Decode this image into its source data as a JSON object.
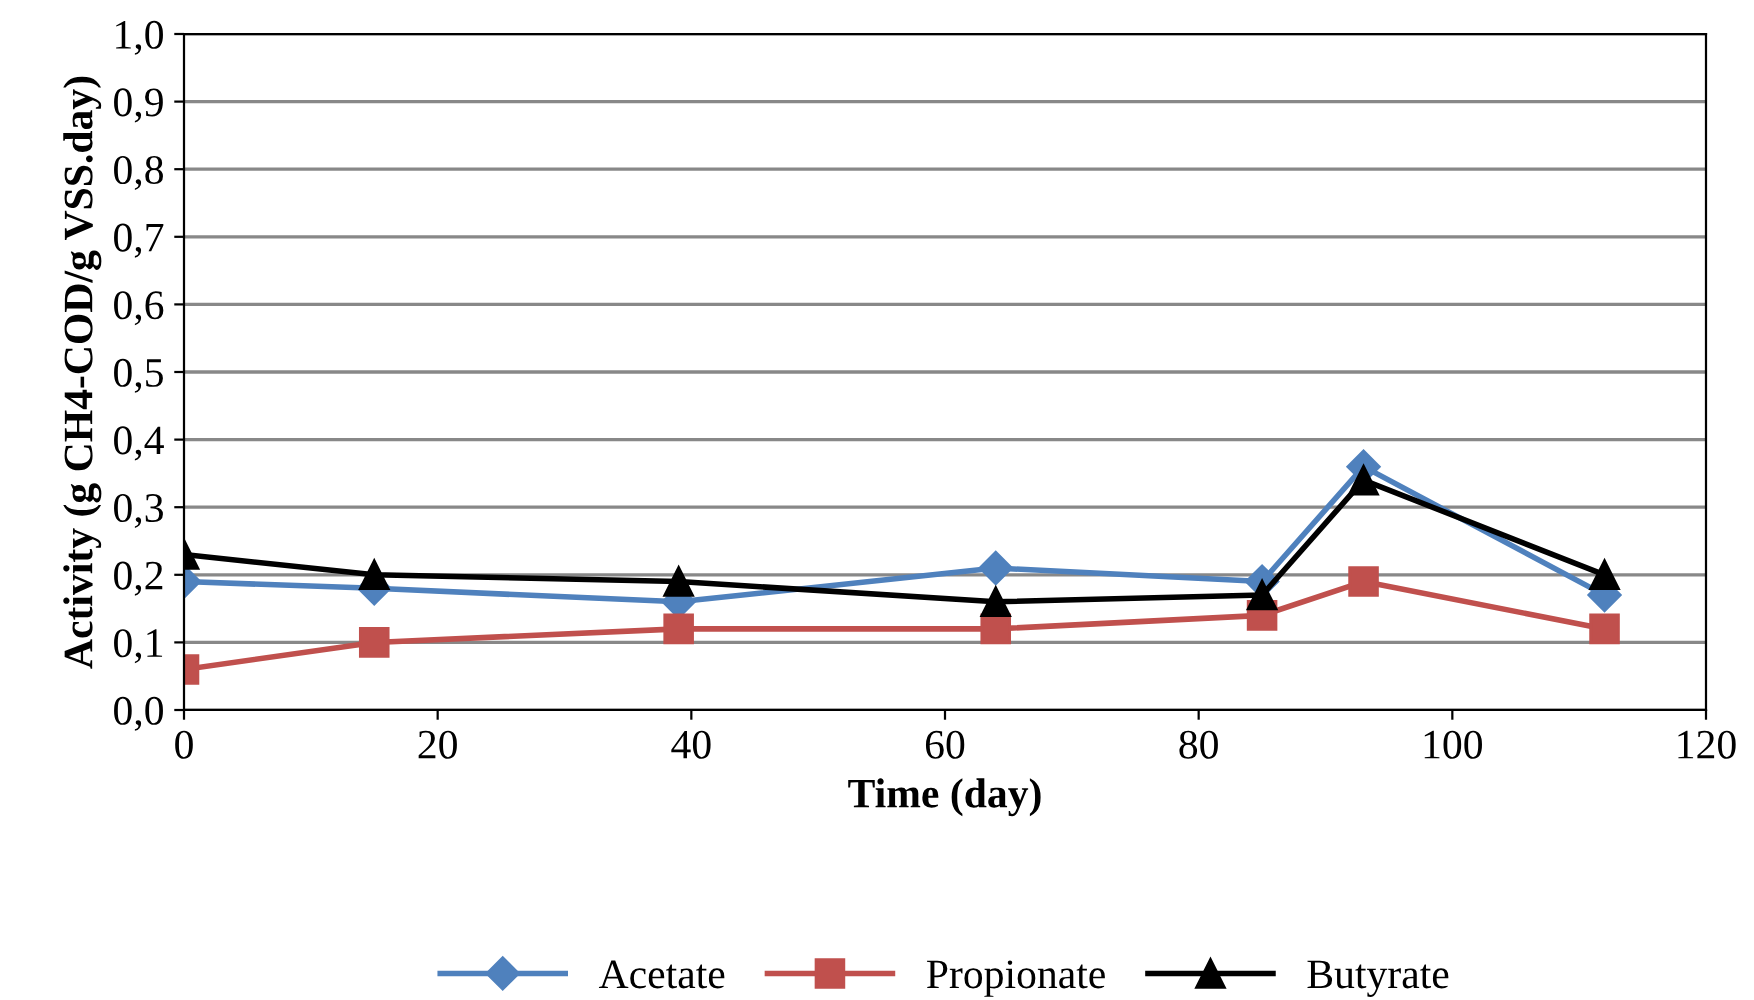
{
  "chart_data": {
    "type": "line",
    "xlabel": "Time (day)",
    "ylabel": "Activity (g CH4-COD/g VSS.day)",
    "x": [
      0,
      15,
      39,
      64,
      85,
      93,
      112
    ],
    "series": [
      {
        "name": "Acetate",
        "color": "#4f81bd",
        "marker": "diamond",
        "values": [
          0.19,
          0.18,
          0.16,
          0.21,
          0.19,
          0.36,
          0.17
        ]
      },
      {
        "name": "Propionate",
        "color": "#c0504d",
        "marker": "square",
        "values": [
          0.06,
          0.1,
          0.12,
          0.12,
          0.14,
          0.19,
          0.12
        ]
      },
      {
        "name": "Butyrate",
        "color": "#000000",
        "marker": "triangle",
        "values": [
          0.23,
          0.2,
          0.19,
          0.16,
          0.17,
          0.34,
          0.2
        ]
      }
    ],
    "xlim": [
      0,
      120
    ],
    "xticks": [
      0,
      20,
      40,
      60,
      80,
      100,
      120
    ],
    "ylim": [
      0,
      1
    ],
    "yticks": [
      {
        "value": 0,
        "label": "0,0"
      },
      {
        "value": 0.1,
        "label": "0,1"
      },
      {
        "value": 0.2,
        "label": "0,2"
      },
      {
        "value": 0.3,
        "label": "0,3"
      },
      {
        "value": 0.4,
        "label": "0,4"
      },
      {
        "value": 0.5,
        "label": "0,5"
      },
      {
        "value": 0.6,
        "label": "0,6"
      },
      {
        "value": 0.7,
        "label": "0,7"
      },
      {
        "value": 0.8,
        "label": "0,8"
      },
      {
        "value": 0.9,
        "label": "0,9"
      },
      {
        "value": 1,
        "label": "1,0"
      }
    ],
    "grid": "y",
    "legend": "bottom"
  }
}
